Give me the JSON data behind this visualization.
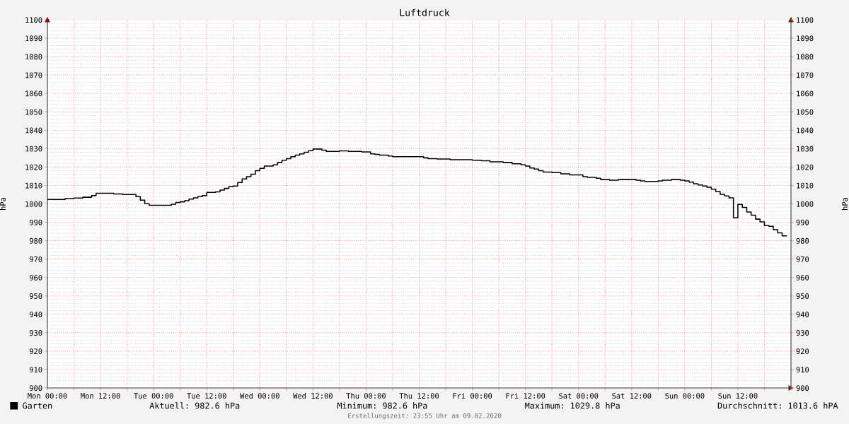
{
  "chart_data": {
    "type": "step",
    "title": "Luftdruck",
    "ylabel": "hPa",
    "y2label": "hPa",
    "x": [
      "2020-02-03T00:00",
      "2020-02-03T04:00",
      "2020-02-03T06:00",
      "2020-02-03T08:00",
      "2020-02-03T10:00",
      "2020-02-03T11:00",
      "2020-02-03T15:00",
      "2020-02-03T17:00",
      "2020-02-03T20:00",
      "2020-02-03T21:00",
      "2020-02-03T22:00",
      "2020-02-03T23:00",
      "2020-02-04T04:00",
      "2020-02-04T05:00",
      "2020-02-04T06:00",
      "2020-02-04T07:00",
      "2020-02-04T08:00",
      "2020-02-04T09:00",
      "2020-02-04T10:00",
      "2020-02-04T11:00",
      "2020-02-04T12:00",
      "2020-02-04T14:00",
      "2020-02-04T15:00",
      "2020-02-04T16:00",
      "2020-02-04T17:00",
      "2020-02-04T18:00",
      "2020-02-04T19:00",
      "2020-02-04T20:00",
      "2020-02-04T21:00",
      "2020-02-04T22:00",
      "2020-02-04T23:00",
      "2020-02-05T00:00",
      "2020-02-05T01:00",
      "2020-02-05T03:00",
      "2020-02-05T04:00",
      "2020-02-05T05:00",
      "2020-02-05T06:00",
      "2020-02-05T07:00",
      "2020-02-05T08:00",
      "2020-02-05T09:00",
      "2020-02-05T10:00",
      "2020-02-05T11:00",
      "2020-02-05T12:00",
      "2020-02-05T14:00",
      "2020-02-05T15:00",
      "2020-02-05T18:00",
      "2020-02-05T20:00",
      "2020-02-05T23:00",
      "2020-02-06T01:00",
      "2020-02-06T02:00",
      "2020-02-06T03:00",
      "2020-02-06T05:00",
      "2020-02-06T06:00",
      "2020-02-06T13:00",
      "2020-02-06T14:00",
      "2020-02-06T16:00",
      "2020-02-06T19:00",
      "2020-02-07T00:00",
      "2020-02-07T02:00",
      "2020-02-07T04:00",
      "2020-02-07T07:00",
      "2020-02-07T09:00",
      "2020-02-07T11:00",
      "2020-02-07T12:00",
      "2020-02-07T13:00",
      "2020-02-07T14:00",
      "2020-02-07T15:00",
      "2020-02-07T16:00",
      "2020-02-07T18:00",
      "2020-02-07T20:00",
      "2020-02-07T22:00",
      "2020-02-08T01:00",
      "2020-02-08T02:00",
      "2020-02-08T04:00",
      "2020-02-08T05:00",
      "2020-02-08T07:00",
      "2020-02-08T09:00",
      "2020-02-08T13:00",
      "2020-02-08T14:00",
      "2020-02-08T15:00",
      "2020-02-08T18:00",
      "2020-02-08T19:00",
      "2020-02-08T21:00",
      "2020-02-08T23:00",
      "2020-02-09T00:00",
      "2020-02-09T01:00",
      "2020-02-09T02:00",
      "2020-02-09T03:00",
      "2020-02-09T04:00",
      "2020-02-09T05:00",
      "2020-02-09T06:00",
      "2020-02-09T07:00",
      "2020-02-09T08:00",
      "2020-02-09T09:00",
      "2020-02-09T10:00",
      "2020-02-09T11:00",
      "2020-02-09T12:00",
      "2020-02-09T13:00",
      "2020-02-09T14:00",
      "2020-02-09T15:00",
      "2020-02-09T16:00",
      "2020-02-09T17:00",
      "2020-02-09T18:00",
      "2020-02-09T19:00",
      "2020-02-09T20:00",
      "2020-02-09T21:00",
      "2020-02-09T22:00",
      "2020-02-09T23:00"
    ],
    "series": [
      {
        "name": "Garten",
        "color": "#000000",
        "values": [
          1002.4,
          1002.9,
          1003.2,
          1003.6,
          1004.5,
          1005.8,
          1005.4,
          1005.1,
          1003.9,
          1002.0,
          1000.1,
          999.2,
          999.8,
          1000.8,
          1001.1,
          1001.7,
          1002.6,
          1003.3,
          1003.9,
          1004.5,
          1006.2,
          1006.5,
          1007.5,
          1008.4,
          1009.4,
          1009.7,
          1011.6,
          1013.5,
          1014.8,
          1016.1,
          1018.0,
          1019.3,
          1020.5,
          1021.2,
          1022.5,
          1023.7,
          1024.6,
          1025.6,
          1026.5,
          1027.2,
          1028.0,
          1028.9,
          1029.8,
          1029.2,
          1028.5,
          1028.8,
          1028.5,
          1028.2,
          1027.2,
          1026.9,
          1026.5,
          1026.0,
          1025.6,
          1025.0,
          1024.6,
          1024.4,
          1024.0,
          1023.7,
          1023.4,
          1022.8,
          1022.5,
          1021.8,
          1021.2,
          1020.5,
          1019.5,
          1018.9,
          1018.0,
          1017.3,
          1017.0,
          1016.3,
          1015.7,
          1014.8,
          1014.4,
          1013.9,
          1013.2,
          1012.9,
          1013.2,
          1012.9,
          1012.5,
          1012.2,
          1012.5,
          1012.9,
          1013.2,
          1012.9,
          1012.5,
          1011.8,
          1010.9,
          1010.3,
          1009.7,
          1009.0,
          1008.0,
          1006.7,
          1005.2,
          1004.3,
          1003.3,
          992.4,
          999.7,
          998.1,
          995.6,
          993.9,
          991.7,
          990.2,
          988.2,
          987.8,
          986.0,
          984.3,
          982.6,
          982.6
        ]
      }
    ],
    "xlim": [
      "2020-02-03T00:00",
      "2020-02-10T00:00"
    ],
    "xticks": [
      {
        "value": "2020-02-03T00:00",
        "label": "Mon 00:00"
      },
      {
        "value": "2020-02-03T06:00",
        "label": null
      },
      {
        "value": "2020-02-03T12:00",
        "label": "Mon 12:00"
      },
      {
        "value": "2020-02-03T18:00",
        "label": null
      },
      {
        "value": "2020-02-04T00:00",
        "label": "Tue 00:00"
      },
      {
        "value": "2020-02-04T06:00",
        "label": null
      },
      {
        "value": "2020-02-04T12:00",
        "label": "Tue 12:00"
      },
      {
        "value": "2020-02-04T18:00",
        "label": null
      },
      {
        "value": "2020-02-05T00:00",
        "label": "Wed 00:00"
      },
      {
        "value": "2020-02-05T06:00",
        "label": null
      },
      {
        "value": "2020-02-05T12:00",
        "label": "Wed 12:00"
      },
      {
        "value": "2020-02-05T18:00",
        "label": null
      },
      {
        "value": "2020-02-06T00:00",
        "label": "Thu 00:00"
      },
      {
        "value": "2020-02-06T06:00",
        "label": null
      },
      {
        "value": "2020-02-06T12:00",
        "label": "Thu 12:00"
      },
      {
        "value": "2020-02-06T18:00",
        "label": null
      },
      {
        "value": "2020-02-07T00:00",
        "label": "Fri 00:00"
      },
      {
        "value": "2020-02-07T06:00",
        "label": null
      },
      {
        "value": "2020-02-07T12:00",
        "label": "Fri 12:00"
      },
      {
        "value": "2020-02-07T18:00",
        "label": null
      },
      {
        "value": "2020-02-08T00:00",
        "label": "Sat 00:00"
      },
      {
        "value": "2020-02-08T06:00",
        "label": null
      },
      {
        "value": "2020-02-08T12:00",
        "label": "Sat 12:00"
      },
      {
        "value": "2020-02-08T18:00",
        "label": null
      },
      {
        "value": "2020-02-09T00:00",
        "label": "Sun 00:00"
      },
      {
        "value": "2020-02-09T06:00",
        "label": null
      },
      {
        "value": "2020-02-09T12:00",
        "label": "Sun 12:00"
      },
      {
        "value": "2020-02-09T18:00",
        "label": null
      }
    ],
    "ylim": [
      900,
      1100
    ],
    "yticks": [
      900,
      910,
      920,
      930,
      940,
      950,
      960,
      970,
      980,
      990,
      1000,
      1010,
      1020,
      1030,
      1040,
      1050,
      1060,
      1070,
      1080,
      1090,
      1100
    ],
    "y2lim": [
      900,
      1100
    ],
    "y2ticks": [
      900,
      910,
      920,
      930,
      940,
      950,
      960,
      970,
      980,
      990,
      1000,
      1010,
      1020,
      1030,
      1040,
      1050,
      1060,
      1070,
      1080,
      1090,
      1100
    ],
    "grid": true,
    "legend": "bottom left",
    "annotations": [
      "Aktuell: 982.6 hPa",
      "Minimum: 982.6 hPa",
      "Maximum: 1029.8 hPa",
      "Durchschnitt: 1013.6 hPA",
      "Erstellungszeit: 23:55 Uhr am 09.02.2020"
    ]
  }
}
